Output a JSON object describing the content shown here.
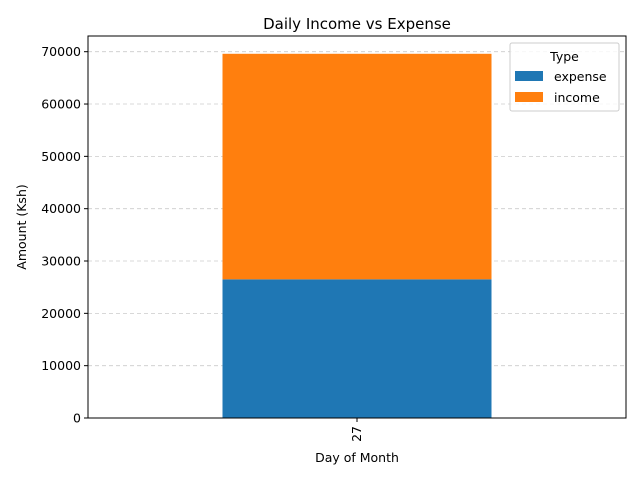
{
  "chart_data": {
    "type": "bar",
    "stacked": true,
    "title": "Daily Income vs Expense",
    "xlabel": "Day of Month",
    "ylabel": "Amount (Ksh)",
    "categories": [
      "27"
    ],
    "series": [
      {
        "name": "expense",
        "values": [
          26500
        ],
        "color": "#1f77b4"
      },
      {
        "name": "income",
        "values": [
          43100
        ],
        "color": "#ff7f0e"
      }
    ],
    "ylim": [
      0,
      73000
    ],
    "yticks": [
      0,
      10000,
      20000,
      30000,
      40000,
      50000,
      60000,
      70000
    ],
    "ytick_labels": [
      "0",
      "10000",
      "20000",
      "30000",
      "40000",
      "50000",
      "60000",
      "70000"
    ],
    "grid": "y-dashed",
    "legend": {
      "title": "Type",
      "position": "top-right"
    }
  }
}
